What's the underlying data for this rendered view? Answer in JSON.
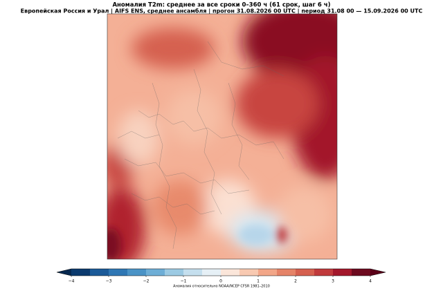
{
  "map": {
    "title": "Аномалия T2m: среднее за все сроки 0–360 ч (61 срок, шаг 6 ч)",
    "subtitle": "Европейская Россия и Урал | AIFS ENS, среднее ансамбля | прогон 31.08.2026 00 UTC | период 31.08 00 — 15.09.2026 00 UTC"
  },
  "colorbar": {
    "label": "Аномалия относительно NOAA/NCEP CFSR 1981–2010",
    "lim": [
      -4,
      4
    ],
    "ticks": [
      {
        "value": -4,
        "label": "−4"
      },
      {
        "value": -3,
        "label": "−3"
      },
      {
        "value": -2,
        "label": "−2"
      },
      {
        "value": -1,
        "label": "−1"
      },
      0,
      1,
      2,
      3,
      4
    ],
    "bounds": [
      -4,
      -3.5,
      -3,
      -2.5,
      -2,
      -1.5,
      -1,
      -0.5,
      0,
      0.5,
      1,
      1.5,
      2,
      2.5,
      3,
      3.5,
      4
    ],
    "colors": [
      "#0b3a6e",
      "#1b5a98",
      "#2f77b4",
      "#4a93c6",
      "#6eaed6",
      "#9ccae3",
      "#c5dfee",
      "#e6f0f6",
      "#fbe6da",
      "#f8c9b1",
      "#f2a688",
      "#e58368",
      "#d5604f",
      "#c03a3c",
      "#a3172b",
      "#6d0a1f"
    ],
    "under": "#06284f",
    "over": "#5a0018"
  }
}
